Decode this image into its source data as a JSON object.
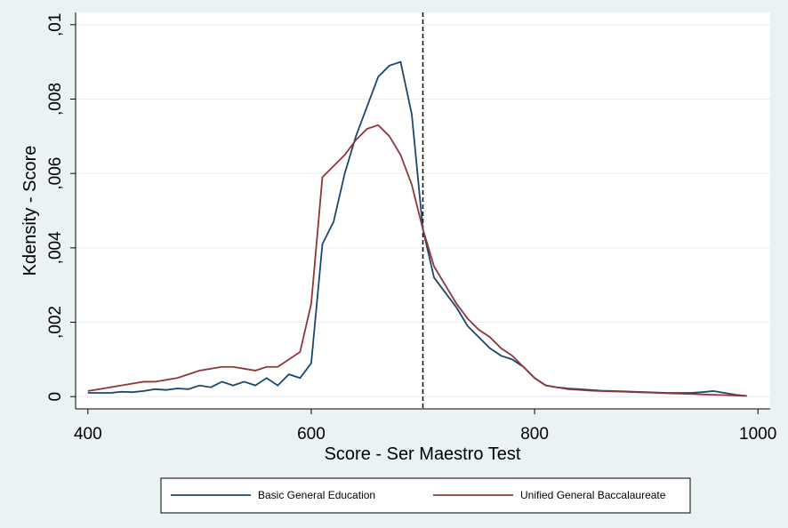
{
  "chart_data": {
    "type": "line",
    "x_label": "Score - Ser Maestro Test",
    "y_label": "Kdensity - Score",
    "x": [
      400,
      410,
      420,
      430,
      440,
      450,
      460,
      470,
      480,
      490,
      500,
      510,
      520,
      530,
      540,
      550,
      560,
      570,
      580,
      590,
      600,
      610,
      620,
      630,
      640,
      650,
      660,
      670,
      680,
      690,
      700,
      710,
      720,
      730,
      740,
      750,
      760,
      770,
      780,
      790,
      800,
      810,
      820,
      830,
      840,
      850,
      860,
      870,
      880,
      890,
      900,
      910,
      920,
      930,
      940,
      950,
      960,
      970,
      980,
      990
    ],
    "series": [
      {
        "name": "Basic General Education",
        "color": "#1a476f",
        "values": [
          0.0001,
          0.0001,
          0.0001,
          0.00013,
          0.00012,
          0.00015,
          0.0002,
          0.00018,
          0.00022,
          0.0002,
          0.0003,
          0.00025,
          0.0004,
          0.0003,
          0.0004,
          0.0003,
          0.0005,
          0.0003,
          0.0006,
          0.0005,
          0.0009,
          0.0041,
          0.0047,
          0.006,
          0.007,
          0.0078,
          0.0086,
          0.0089,
          0.009,
          0.0076,
          0.0045,
          0.0032,
          0.0028,
          0.0024,
          0.0019,
          0.0016,
          0.0013,
          0.0011,
          0.001,
          0.0008,
          0.0005,
          0.0003,
          0.00025,
          0.00022,
          0.0002,
          0.00018,
          0.00016,
          0.00015,
          0.00014,
          0.00013,
          0.00012,
          0.00011,
          0.0001,
          0.0001,
          0.0001,
          0.00012,
          0.00015,
          0.0001,
          5e-05,
          2e-05
        ]
      },
      {
        "name": "Unified General Baccalaureate",
        "color": "#90353b",
        "values": [
          0.00015,
          0.0002,
          0.00025,
          0.0003,
          0.00035,
          0.0004,
          0.0004,
          0.00045,
          0.0005,
          0.0006,
          0.0007,
          0.00075,
          0.0008,
          0.0008,
          0.00075,
          0.0007,
          0.0008,
          0.0008,
          0.001,
          0.0012,
          0.0025,
          0.0059,
          0.0062,
          0.0065,
          0.0069,
          0.0072,
          0.0073,
          0.007,
          0.0065,
          0.0057,
          0.0045,
          0.0035,
          0.003,
          0.0025,
          0.0021,
          0.0018,
          0.0016,
          0.0013,
          0.0011,
          0.0008,
          0.0005,
          0.0003,
          0.00025,
          0.0002,
          0.00018,
          0.00016,
          0.00015,
          0.00014,
          0.00013,
          0.00012,
          0.00011,
          0.0001,
          9e-05,
          8e-05,
          7e-05,
          6e-05,
          5e-05,
          4e-05,
          3e-05,
          2e-05
        ]
      }
    ],
    "vline": 700,
    "xlim": [
      389,
      1011
    ],
    "xticks": [
      400,
      600,
      800,
      1000
    ],
    "ylim": [
      -0.00033,
      0.01033
    ],
    "yticks": [
      0,
      {
        "value": 0.002,
        "label": ",002"
      },
      {
        "value": 0.004,
        "label": ",004"
      },
      {
        "value": 0.006,
        "label": ",006"
      },
      {
        "value": 0.008,
        "label": ",008"
      },
      {
        "value": 0.01,
        "label": ",01"
      }
    ],
    "grid": true,
    "legend": "bottom"
  }
}
